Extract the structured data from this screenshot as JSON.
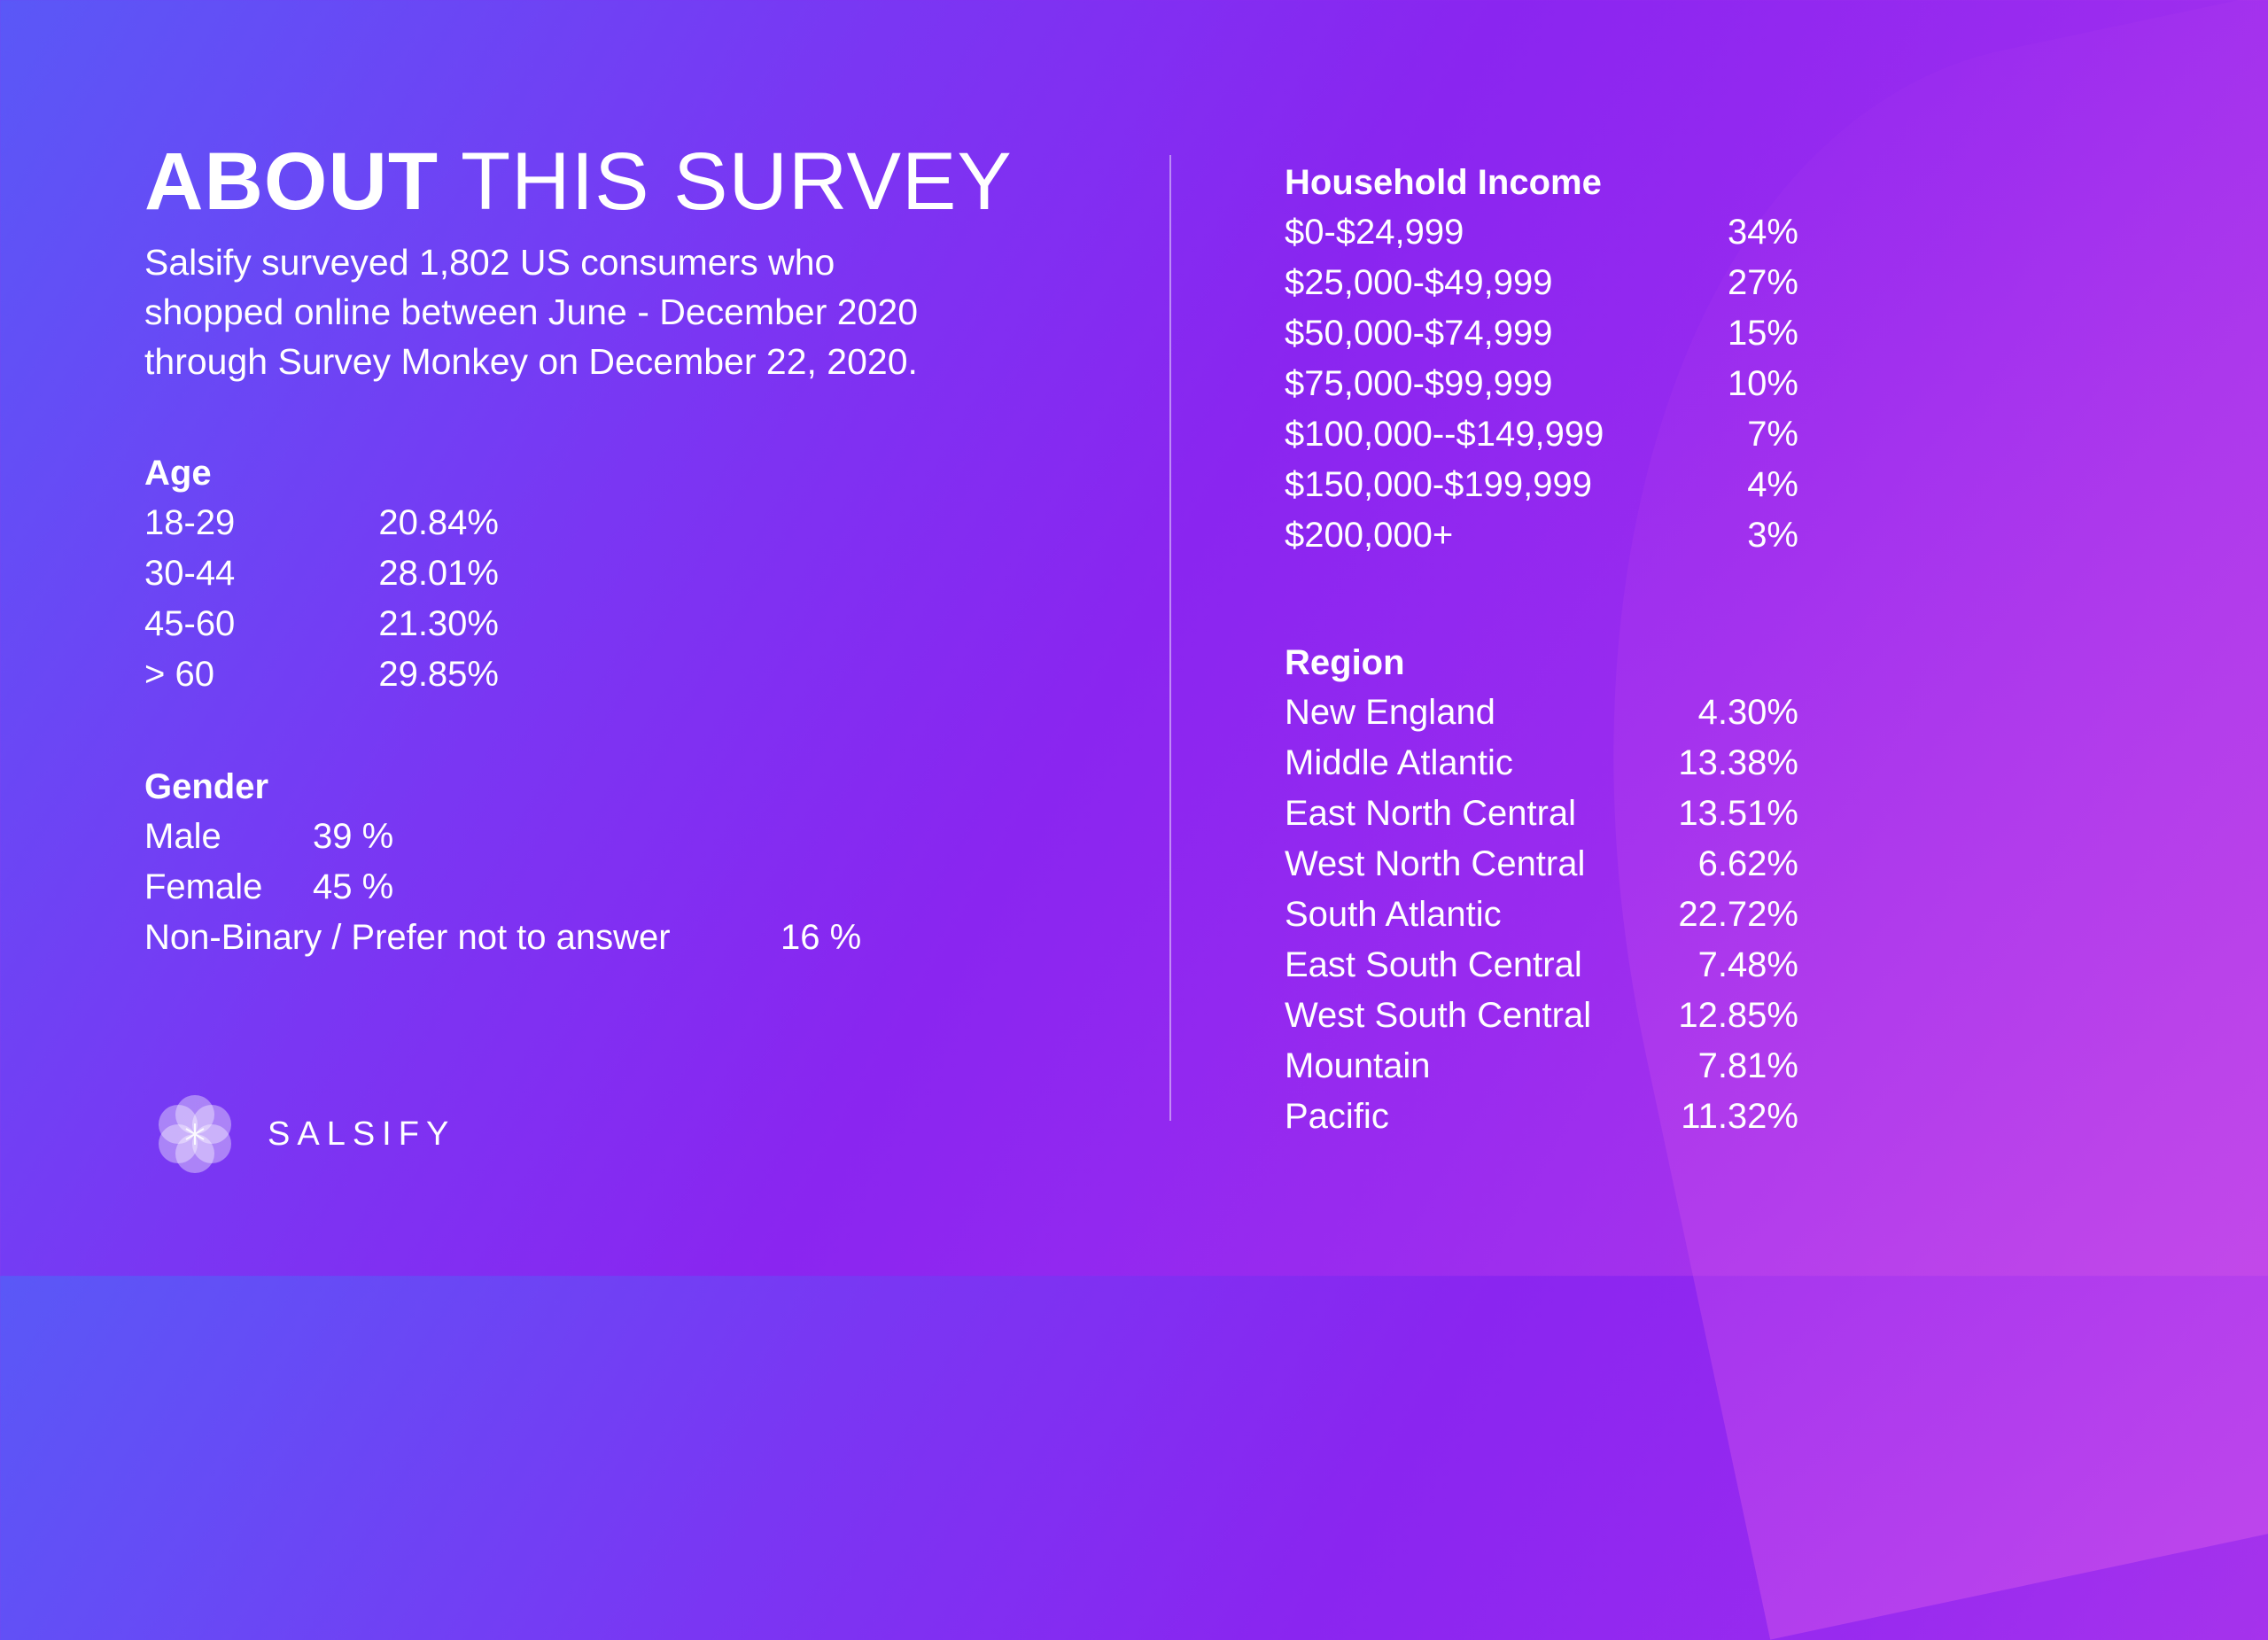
{
  "header": {
    "title_bold": "ABOUT",
    "title_rest": "THIS SURVEY",
    "intro_lines": [
      "Salsify surveyed 1,802 US consumers who",
      "shopped online between June  - December 2020",
      "through Survey Monkey on December 22, 2020."
    ]
  },
  "age": {
    "heading": "Age",
    "rows": [
      {
        "label": "18-29",
        "value": "20.84%"
      },
      {
        "label": "30-44",
        "value": "28.01%"
      },
      {
        "label": "45-60",
        "value": "21.30%"
      },
      {
        "label": "> 60",
        "value": "29.85%"
      }
    ]
  },
  "gender": {
    "heading": "Gender",
    "rows": [
      {
        "label": "Male",
        "value": "39 %"
      },
      {
        "label": "Female",
        "value": "45 %"
      },
      {
        "label": "Non-Binary / Prefer not to answer",
        "value": "16 %"
      }
    ]
  },
  "income": {
    "heading": "Household Income",
    "rows": [
      {
        "label": "$0-$24,999",
        "value": "34%"
      },
      {
        "label": "$25,000-$49,999",
        "value": "27%"
      },
      {
        "label": "$50,000-$74,999",
        "value": "15%"
      },
      {
        "label": "$75,000-$99,999",
        "value": "10%"
      },
      {
        "label": "$100,000--$149,999",
        "value": "7%"
      },
      {
        "label": "$150,000-$199,999",
        "value": "4%"
      },
      {
        "label": "$200,000+",
        "value": "3%"
      }
    ]
  },
  "region": {
    "heading": "Region",
    "rows": [
      {
        "label": "New England",
        "value": "4.30%"
      },
      {
        "label": "Middle Atlantic",
        "value": "13.38%"
      },
      {
        "label": "East North Central",
        "value": "13.51%"
      },
      {
        "label": "West North Central",
        "value": "6.62%"
      },
      {
        "label": "South Atlantic",
        "value": "22.72%"
      },
      {
        "label": "East South Central",
        "value": "7.48%"
      },
      {
        "label": "West South Central",
        "value": "12.85%"
      },
      {
        "label": "Mountain",
        "value": "7.81%"
      },
      {
        "label": "Pacific",
        "value": "11.32%"
      }
    ]
  },
  "logo": {
    "icon": "salsify-flower-icon",
    "wordmark": "SALSIFY"
  },
  "colors": {
    "background_start": "#5a58f7",
    "background_mid": "#8a25f0",
    "background_end": "#b53ee8",
    "text": "#ffffff"
  }
}
